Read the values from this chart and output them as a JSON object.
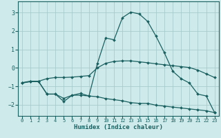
{
  "title": "",
  "xlabel": "Humidex (Indice chaleur)",
  "ylabel": "",
  "background_color": "#ceeaea",
  "grid_color": "#a8cccc",
  "line_color": "#1a6060",
  "xlim": [
    -0.5,
    23.5
  ],
  "ylim": [
    -2.6,
    3.6
  ],
  "yticks": [
    -2,
    -1,
    0,
    1,
    2,
    3
  ],
  "xticks": [
    0,
    1,
    2,
    3,
    4,
    5,
    6,
    7,
    8,
    9,
    10,
    11,
    12,
    13,
    14,
    15,
    16,
    17,
    18,
    19,
    20,
    21,
    22,
    23
  ],
  "series1_x": [
    0,
    1,
    2,
    3,
    4,
    5,
    6,
    7,
    8,
    9,
    10,
    11,
    12,
    13,
    14,
    15,
    16,
    17,
    18,
    19,
    20,
    21,
    22,
    23
  ],
  "series1_y": [
    -0.8,
    -0.72,
    -0.72,
    -0.58,
    -0.52,
    -0.52,
    -0.5,
    -0.46,
    -0.42,
    0.0,
    0.25,
    0.35,
    0.38,
    0.38,
    0.33,
    0.28,
    0.22,
    0.17,
    0.12,
    0.07,
    0.02,
    -0.12,
    -0.32,
    -0.52
  ],
  "series2_x": [
    0,
    1,
    2,
    3,
    4,
    5,
    6,
    7,
    8,
    9,
    10,
    11,
    12,
    13,
    14,
    15,
    16,
    17,
    18,
    19,
    20,
    21,
    22,
    23
  ],
  "series2_y": [
    -0.82,
    -0.74,
    -0.74,
    -1.42,
    -1.42,
    -1.82,
    -1.48,
    -1.48,
    -1.52,
    -1.56,
    -1.66,
    -1.72,
    -1.78,
    -1.88,
    -1.92,
    -1.92,
    -2.02,
    -2.07,
    -2.12,
    -2.17,
    -2.22,
    -2.27,
    -2.32,
    -2.42
  ],
  "series3_x": [
    0,
    1,
    2,
    3,
    4,
    5,
    6,
    7,
    8,
    9,
    10,
    11,
    12,
    13,
    14,
    15,
    16,
    17,
    18,
    19,
    20,
    21,
    22,
    23
  ],
  "series3_y": [
    -0.82,
    -0.74,
    -0.74,
    -1.42,
    -1.42,
    -1.65,
    -1.48,
    -1.38,
    -1.52,
    0.22,
    1.62,
    1.52,
    2.72,
    3.02,
    2.92,
    2.52,
    1.72,
    0.82,
    -0.18,
    -0.58,
    -0.82,
    -1.42,
    -1.52,
    -2.42
  ],
  "marker": "D",
  "markersize": 2.0,
  "linewidth": 0.9,
  "tick_fontsize": 5.5,
  "xlabel_fontsize": 6.5
}
